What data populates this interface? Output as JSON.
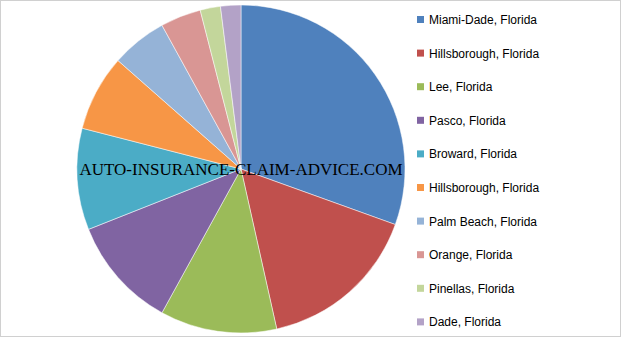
{
  "chart_data": {
    "type": "pie",
    "categories": [
      "Miami-Dade, Florida",
      "Hillsborough, Florida",
      "Lee, Florida",
      "Pasco, Florida",
      "Broward, Florida",
      "Hillsborough, Florida",
      "Palm Beach, Florida",
      "Orange, Florida",
      "Pinellas, Florida",
      "Dade, Florida"
    ],
    "values": [
      30.5,
      16,
      11.5,
      11,
      10,
      7.5,
      5.5,
      4,
      2,
      2
    ],
    "colors": [
      "#4f81bd",
      "#c0504d",
      "#9bbb59",
      "#8064a2",
      "#4bacc6",
      "#f79646",
      "#95b3d7",
      "#d99694",
      "#c3d69b",
      "#b3a2c7"
    ],
    "legend": "right",
    "annotations": [
      "AUTO-INSURANCE-CLAIM-ADVICE.COM"
    ]
  }
}
